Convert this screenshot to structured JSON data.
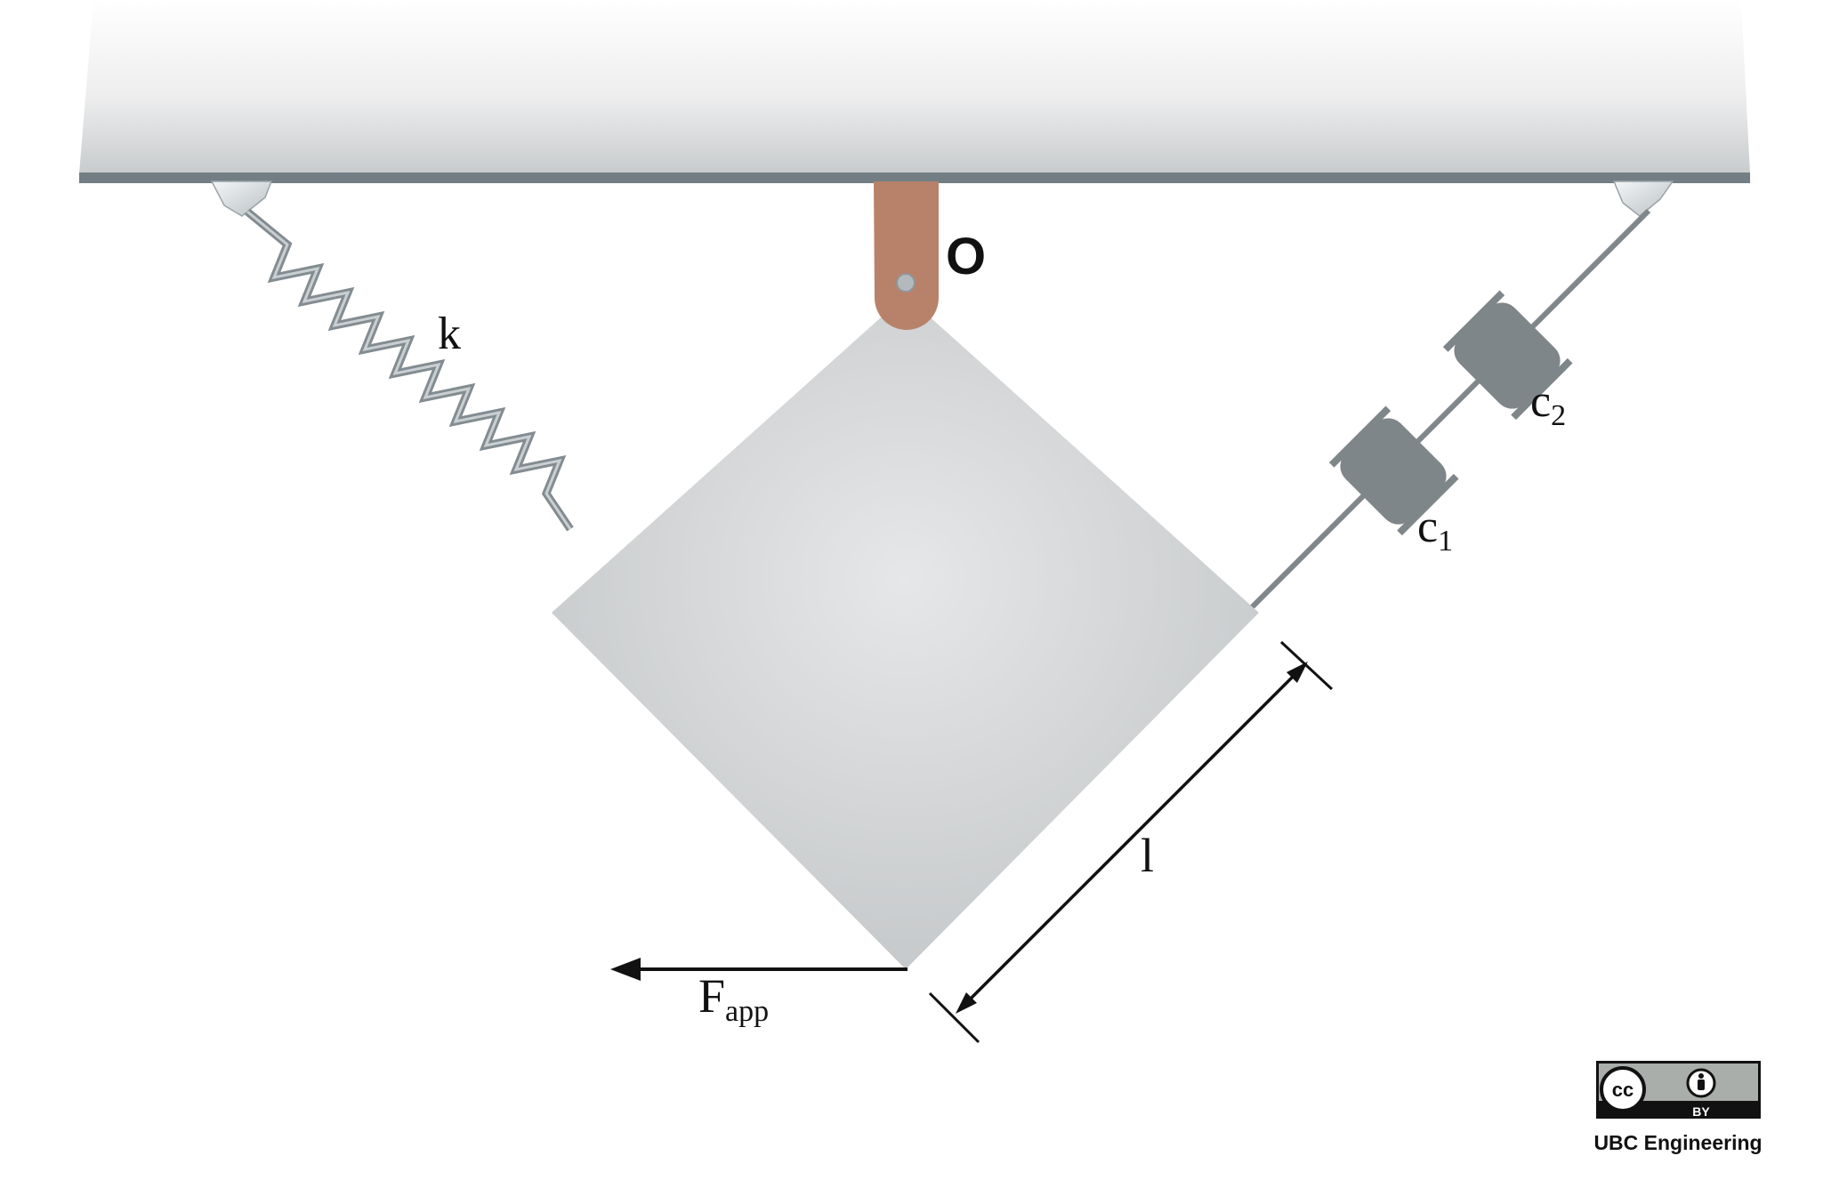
{
  "labels": {
    "pivot": "O",
    "spring": "k",
    "damper_upper": "c",
    "damper_upper_sub": "2",
    "damper_lower": "c",
    "damper_lower_sub": "1",
    "length": "l",
    "force": "F",
    "force_sub": "app"
  },
  "license": {
    "cc": "cc",
    "by": "BY",
    "credit": "UBC Engineering"
  },
  "colors": {
    "ceiling_edge": "#727e84",
    "block": "#cdd0d2",
    "pin": "#b8826a",
    "spring": "#8a9398",
    "damper": "#7f8689",
    "arrow": "#111111"
  }
}
